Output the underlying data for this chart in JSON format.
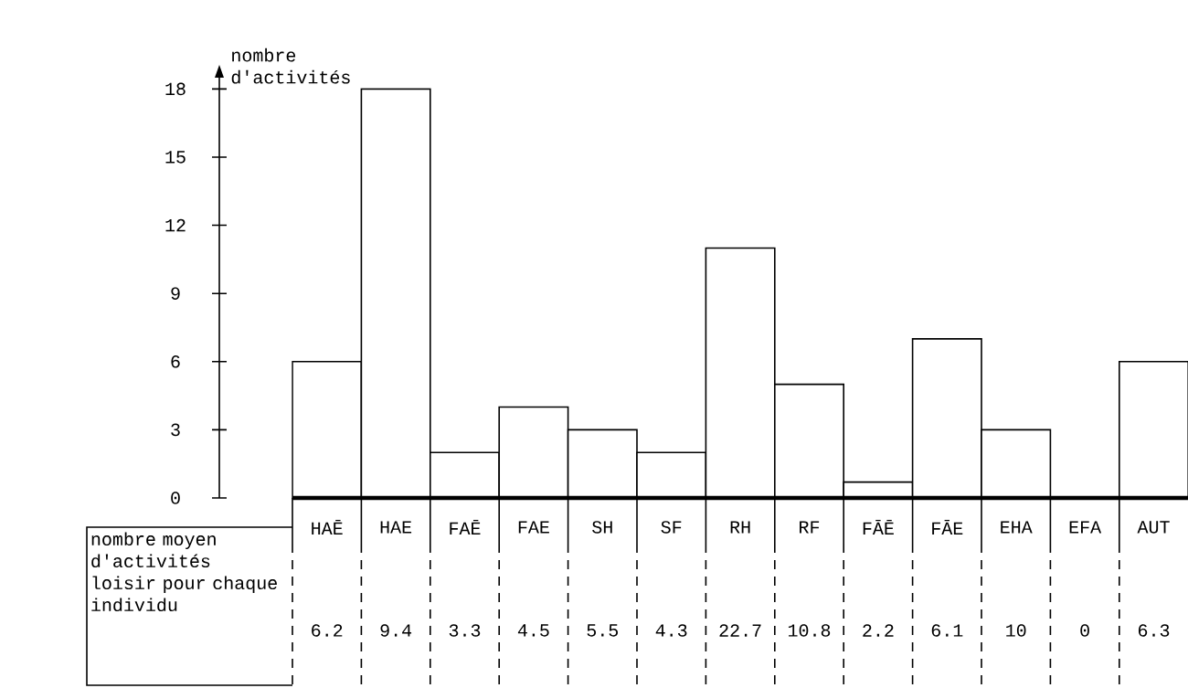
{
  "chart_data": {
    "type": "bar",
    "ylabel": "nombre d'activités",
    "categories": [
      "HAĒ",
      "HAE",
      "FAĒ",
      "FAE",
      "SH",
      "SF",
      "RH",
      "RF",
      "FĀĒ",
      "FĀE",
      "EHA",
      "EFA",
      "AUT"
    ],
    "values": [
      6,
      18,
      2,
      4,
      3,
      2,
      11,
      5,
      0.7,
      7,
      3,
      0,
      6
    ],
    "color": "#ffffff",
    "ylim": [
      0,
      18.9
    ],
    "yticks": [
      0,
      3,
      6,
      9,
      12,
      15,
      18
    ],
    "annotations": [
      "nombre moyen d'activités loisir pour chaque individu",
      "6.2",
      "9.4",
      "3.3",
      "4.5",
      "5.5",
      "4.3",
      "22.7",
      "10.8",
      "2.2",
      "6.1",
      "10",
      "0",
      "6.3"
    ]
  }
}
